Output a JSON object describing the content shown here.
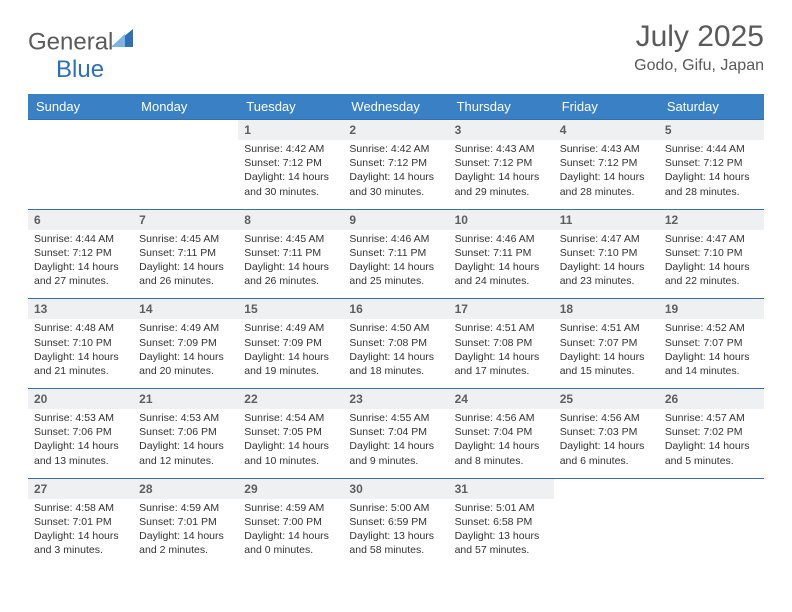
{
  "brand": {
    "name_gray": "General",
    "name_blue": "Blue"
  },
  "title": {
    "month": "July 2025",
    "location": "Godo, Gifu, Japan"
  },
  "colors": {
    "header_bg": "#3a80c4",
    "header_fg": "#ffffff",
    "daynum_bg": "#eef0f2",
    "row_border": "#3a6fa5",
    "text": "#333333",
    "title_gray": "#5a5a5a",
    "brand_blue": "#2f6fb3"
  },
  "weekdays": [
    "Sunday",
    "Monday",
    "Tuesday",
    "Wednesday",
    "Thursday",
    "Friday",
    "Saturday"
  ],
  "weeks": [
    [
      {
        "blank": true
      },
      {
        "blank": true
      },
      {
        "n": "1",
        "sr": "4:42 AM",
        "ss": "7:12 PM",
        "dl": "14 hours and 30 minutes."
      },
      {
        "n": "2",
        "sr": "4:42 AM",
        "ss": "7:12 PM",
        "dl": "14 hours and 30 minutes."
      },
      {
        "n": "3",
        "sr": "4:43 AM",
        "ss": "7:12 PM",
        "dl": "14 hours and 29 minutes."
      },
      {
        "n": "4",
        "sr": "4:43 AM",
        "ss": "7:12 PM",
        "dl": "14 hours and 28 minutes."
      },
      {
        "n": "5",
        "sr": "4:44 AM",
        "ss": "7:12 PM",
        "dl": "14 hours and 28 minutes."
      }
    ],
    [
      {
        "n": "6",
        "sr": "4:44 AM",
        "ss": "7:12 PM",
        "dl": "14 hours and 27 minutes."
      },
      {
        "n": "7",
        "sr": "4:45 AM",
        "ss": "7:11 PM",
        "dl": "14 hours and 26 minutes."
      },
      {
        "n": "8",
        "sr": "4:45 AM",
        "ss": "7:11 PM",
        "dl": "14 hours and 26 minutes."
      },
      {
        "n": "9",
        "sr": "4:46 AM",
        "ss": "7:11 PM",
        "dl": "14 hours and 25 minutes."
      },
      {
        "n": "10",
        "sr": "4:46 AM",
        "ss": "7:11 PM",
        "dl": "14 hours and 24 minutes."
      },
      {
        "n": "11",
        "sr": "4:47 AM",
        "ss": "7:10 PM",
        "dl": "14 hours and 23 minutes."
      },
      {
        "n": "12",
        "sr": "4:47 AM",
        "ss": "7:10 PM",
        "dl": "14 hours and 22 minutes."
      }
    ],
    [
      {
        "n": "13",
        "sr": "4:48 AM",
        "ss": "7:10 PM",
        "dl": "14 hours and 21 minutes."
      },
      {
        "n": "14",
        "sr": "4:49 AM",
        "ss": "7:09 PM",
        "dl": "14 hours and 20 minutes."
      },
      {
        "n": "15",
        "sr": "4:49 AM",
        "ss": "7:09 PM",
        "dl": "14 hours and 19 minutes."
      },
      {
        "n": "16",
        "sr": "4:50 AM",
        "ss": "7:08 PM",
        "dl": "14 hours and 18 minutes."
      },
      {
        "n": "17",
        "sr": "4:51 AM",
        "ss": "7:08 PM",
        "dl": "14 hours and 17 minutes."
      },
      {
        "n": "18",
        "sr": "4:51 AM",
        "ss": "7:07 PM",
        "dl": "14 hours and 15 minutes."
      },
      {
        "n": "19",
        "sr": "4:52 AM",
        "ss": "7:07 PM",
        "dl": "14 hours and 14 minutes."
      }
    ],
    [
      {
        "n": "20",
        "sr": "4:53 AM",
        "ss": "7:06 PM",
        "dl": "14 hours and 13 minutes."
      },
      {
        "n": "21",
        "sr": "4:53 AM",
        "ss": "7:06 PM",
        "dl": "14 hours and 12 minutes."
      },
      {
        "n": "22",
        "sr": "4:54 AM",
        "ss": "7:05 PM",
        "dl": "14 hours and 10 minutes."
      },
      {
        "n": "23",
        "sr": "4:55 AM",
        "ss": "7:04 PM",
        "dl": "14 hours and 9 minutes."
      },
      {
        "n": "24",
        "sr": "4:56 AM",
        "ss": "7:04 PM",
        "dl": "14 hours and 8 minutes."
      },
      {
        "n": "25",
        "sr": "4:56 AM",
        "ss": "7:03 PM",
        "dl": "14 hours and 6 minutes."
      },
      {
        "n": "26",
        "sr": "4:57 AM",
        "ss": "7:02 PM",
        "dl": "14 hours and 5 minutes."
      }
    ],
    [
      {
        "n": "27",
        "sr": "4:58 AM",
        "ss": "7:01 PM",
        "dl": "14 hours and 3 minutes."
      },
      {
        "n": "28",
        "sr": "4:59 AM",
        "ss": "7:01 PM",
        "dl": "14 hours and 2 minutes."
      },
      {
        "n": "29",
        "sr": "4:59 AM",
        "ss": "7:00 PM",
        "dl": "14 hours and 0 minutes."
      },
      {
        "n": "30",
        "sr": "5:00 AM",
        "ss": "6:59 PM",
        "dl": "13 hours and 58 minutes."
      },
      {
        "n": "31",
        "sr": "5:01 AM",
        "ss": "6:58 PM",
        "dl": "13 hours and 57 minutes."
      },
      {
        "blank": true
      },
      {
        "blank": true
      }
    ]
  ],
  "labels": {
    "sunrise": "Sunrise:",
    "sunset": "Sunset:",
    "daylight": "Daylight:"
  }
}
